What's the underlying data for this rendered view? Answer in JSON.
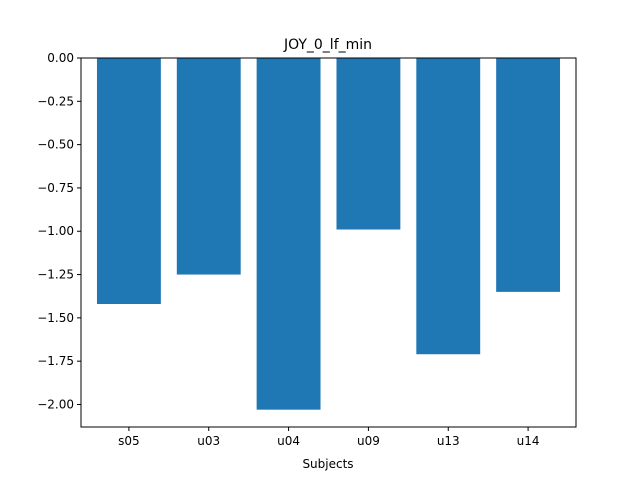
{
  "chart_data": {
    "type": "bar",
    "title": "JOY_0_lf_min",
    "xlabel": "Subjects",
    "ylabel": "",
    "categories": [
      "s05",
      "u03",
      "u04",
      "u09",
      "u13",
      "u14"
    ],
    "values": [
      -1.42,
      -1.25,
      -2.03,
      -0.99,
      -1.71,
      -1.35
    ],
    "ylim": [
      -2.13,
      0.0
    ],
    "yticks": [
      0.0,
      -0.25,
      -0.5,
      -0.75,
      -1.0,
      -1.25,
      -1.5,
      -1.75,
      -2.0
    ],
    "ytick_labels": [
      "0.00",
      "−0.25",
      "−0.50",
      "−0.75",
      "−1.00",
      "−1.25",
      "−1.50",
      "−1.75",
      "−2.00"
    ],
    "bar_color": "#1f77b4",
    "grid": false,
    "legend": "none"
  }
}
